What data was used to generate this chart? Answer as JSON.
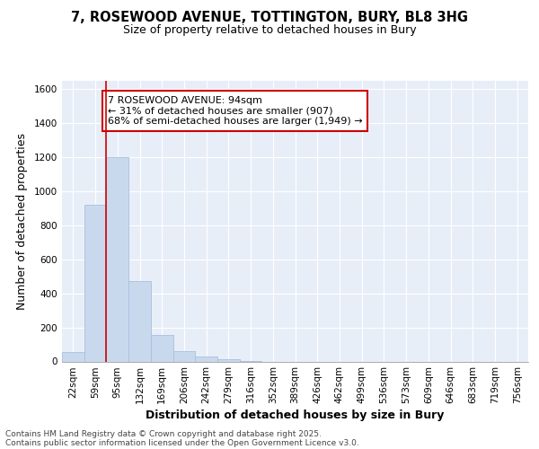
{
  "title_line1": "7, ROSEWOOD AVENUE, TOTTINGTON, BURY, BL8 3HG",
  "title_line2": "Size of property relative to detached houses in Bury",
  "xlabel": "Distribution of detached houses by size in Bury",
  "ylabel": "Number of detached properties",
  "categories": [
    "22sqm",
    "59sqm",
    "95sqm",
    "132sqm",
    "169sqm",
    "206sqm",
    "242sqm",
    "279sqm",
    "316sqm",
    "352sqm",
    "389sqm",
    "426sqm",
    "462sqm",
    "499sqm",
    "536sqm",
    "573sqm",
    "609sqm",
    "646sqm",
    "683sqm",
    "719sqm",
    "756sqm"
  ],
  "values": [
    55,
    920,
    1200,
    475,
    155,
    60,
    30,
    15,
    5,
    0,
    0,
    0,
    0,
    0,
    0,
    0,
    0,
    0,
    0,
    0,
    0
  ],
  "bar_color": "#c8d9ee",
  "bar_edge_color": "#a8c0de",
  "vline_bar_index": 2,
  "vline_color": "#cc0000",
  "annotation_box_text": "7 ROSEWOOD AVENUE: 94sqm\n← 31% of detached houses are smaller (907)\n68% of semi-detached houses are larger (1,949) →",
  "annotation_box_facecolor": "#ffffff",
  "annotation_box_edgecolor": "#cc0000",
  "ylim": [
    0,
    1650
  ],
  "yticks": [
    0,
    200,
    400,
    600,
    800,
    1000,
    1200,
    1400,
    1600
  ],
  "background_color": "#ffffff",
  "plot_bg_color": "#e8eef8",
  "grid_color": "#ffffff",
  "footnote_line1": "Contains HM Land Registry data © Crown copyright and database right 2025.",
  "footnote_line2": "Contains public sector information licensed under the Open Government Licence v3.0.",
  "title_fontsize": 10.5,
  "subtitle_fontsize": 9,
  "axis_label_fontsize": 9,
  "tick_fontsize": 7.5,
  "annotation_fontsize": 8,
  "footnote_fontsize": 6.5
}
